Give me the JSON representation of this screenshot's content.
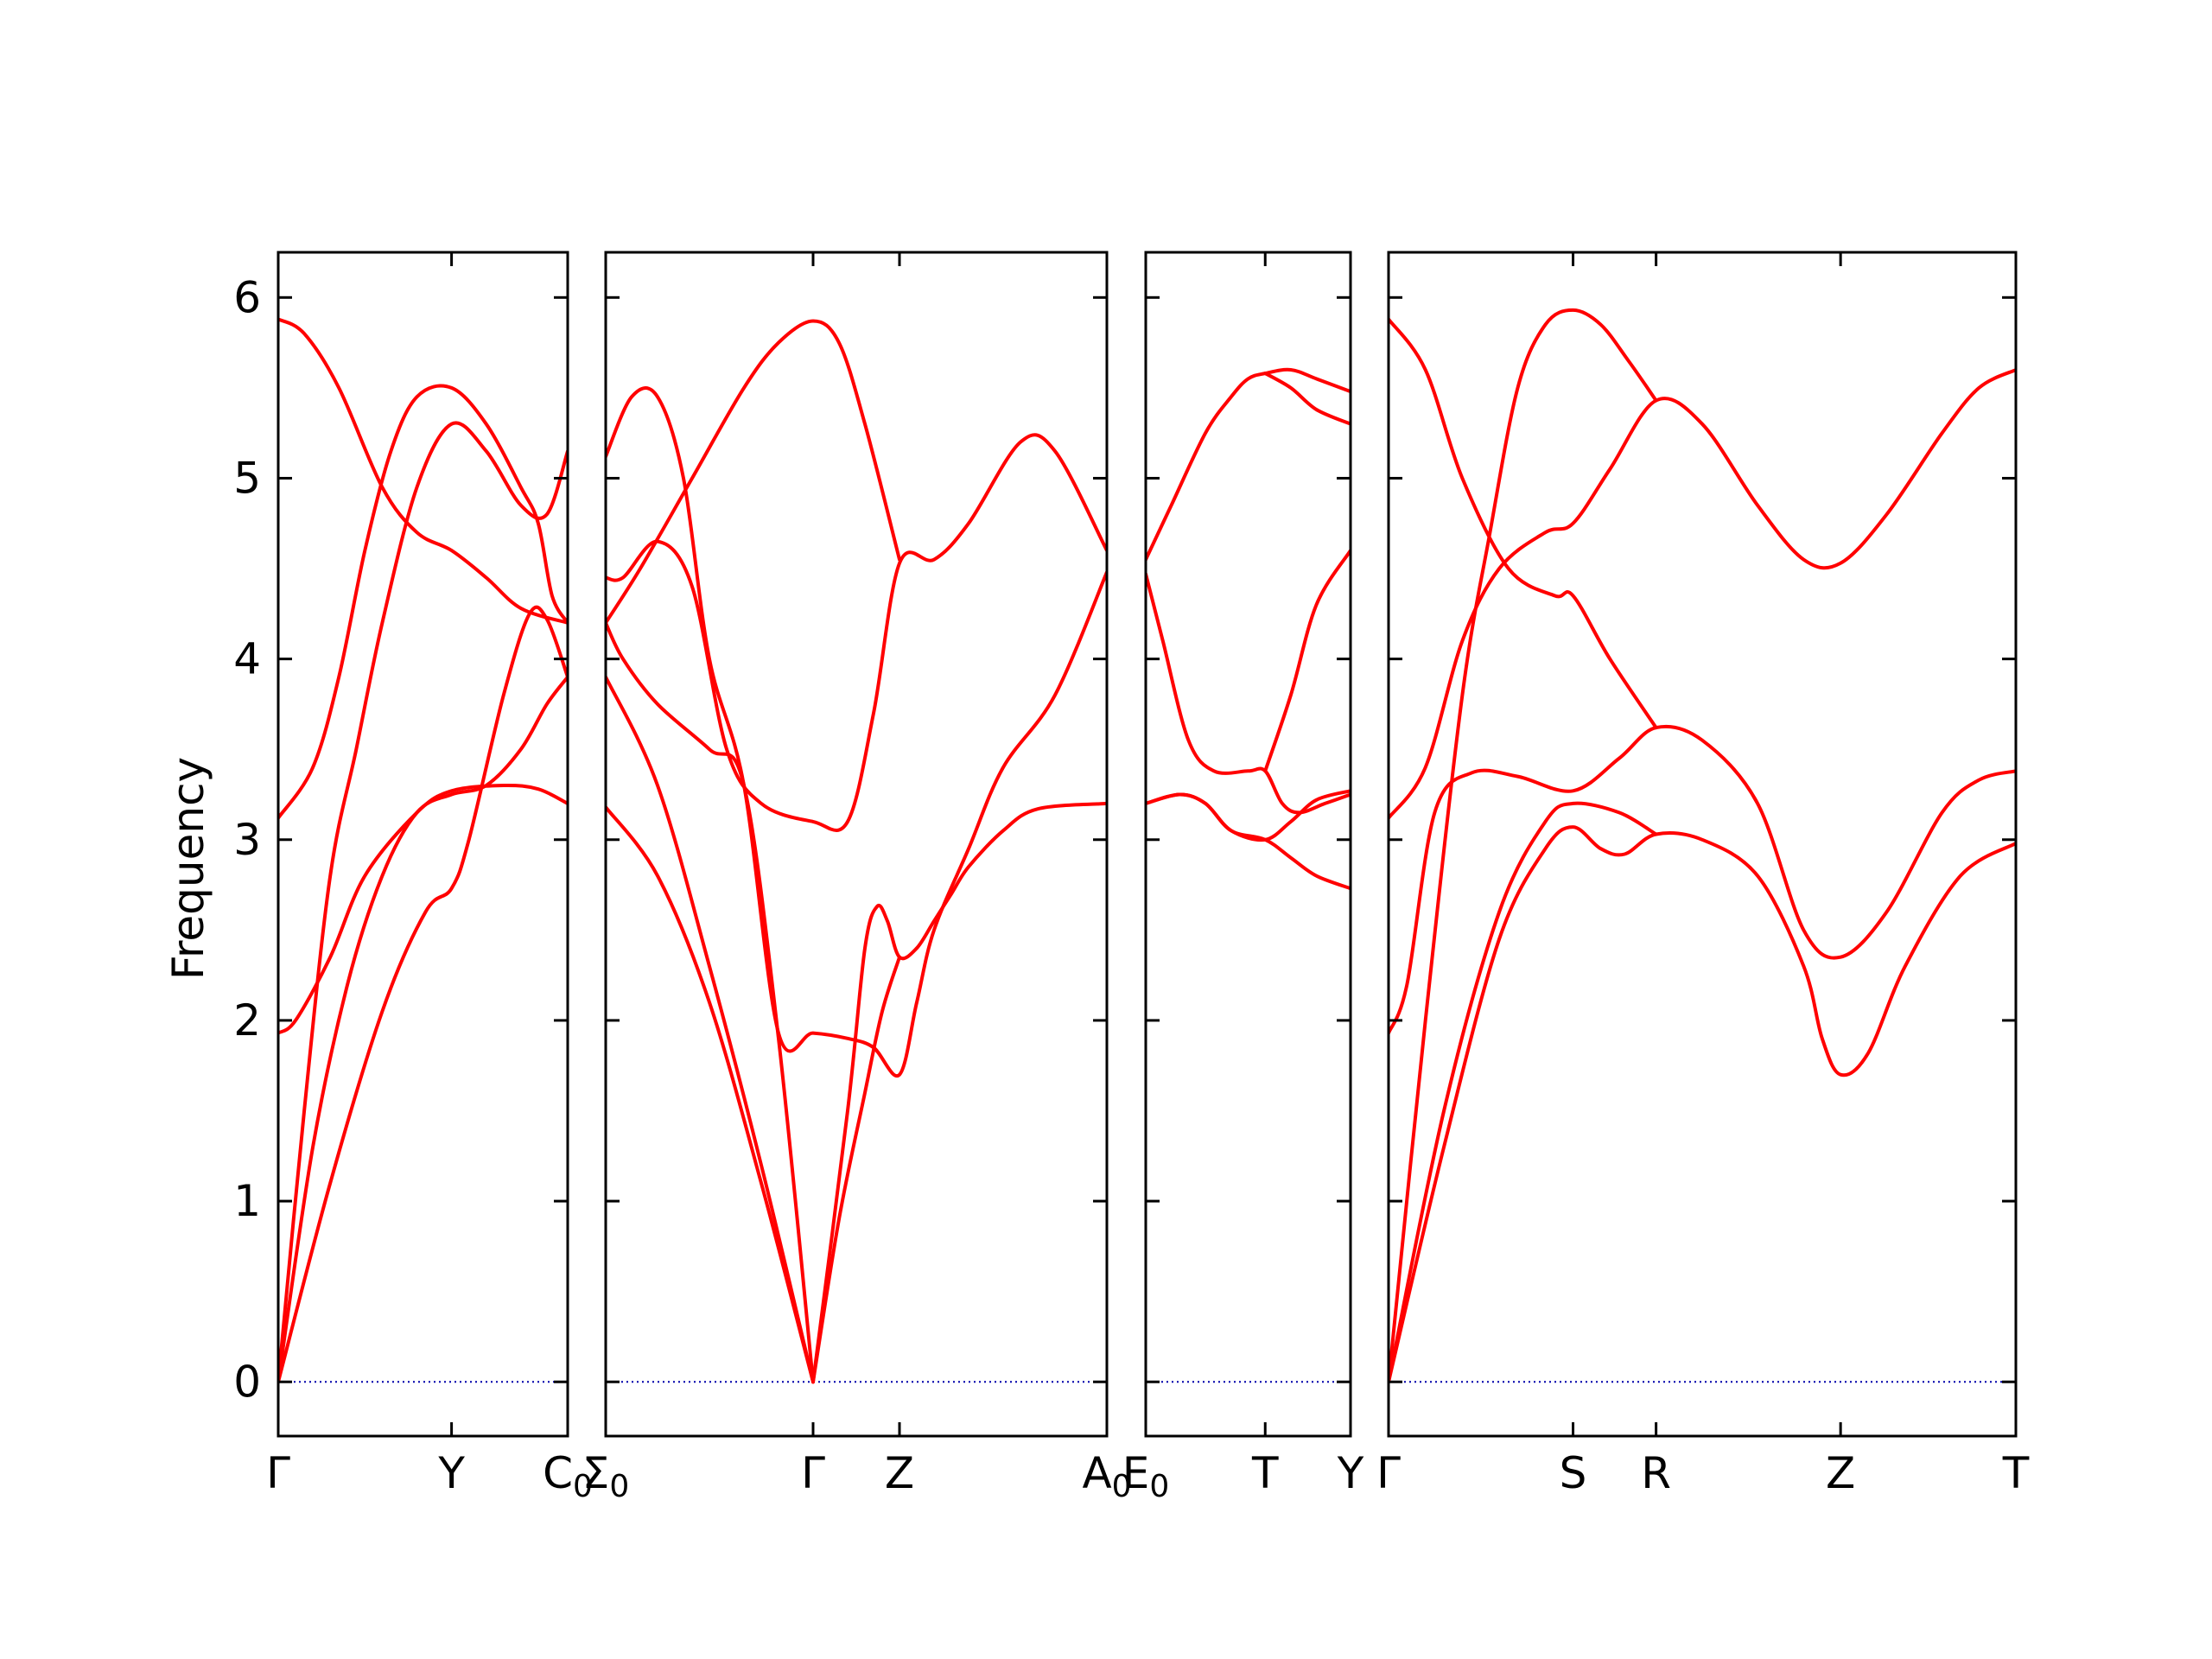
{
  "chart_data": {
    "type": "line",
    "ylabel": "Frequency",
    "ylim": [
      -0.3,
      6.25
    ],
    "yticks": [
      "0",
      "1",
      "2",
      "3",
      "4",
      "5",
      "6"
    ],
    "ytick_values": [
      0,
      1,
      2,
      3,
      4,
      5,
      6
    ],
    "band_color": "#ff0000",
    "zero_line_color": "#0000aa",
    "panels": [
      {
        "xticks": [
          {
            "label": "Γ",
            "sub": "",
            "x": 0.0
          },
          {
            "label": "Y",
            "sub": "",
            "x": 1.0
          },
          {
            "label": "C",
            "sub": "0",
            "x": 1.67
          }
        ],
        "xlim": [
          0,
          1.67
        ],
        "bands": [
          [
            [
              0,
              0
            ],
            [
              0.3,
              1.1
            ],
            [
              0.6,
              2.05
            ],
            [
              0.85,
              2.6
            ],
            [
              1.0,
              2.73
            ],
            [
              1.1,
              3.0
            ],
            [
              1.3,
              3.8
            ],
            [
              1.45,
              4.25
            ],
            [
              1.55,
              4.22
            ],
            [
              1.67,
              3.9
            ]
          ],
          [
            [
              0,
              0
            ],
            [
              0.2,
              1.3
            ],
            [
              0.4,
              2.2
            ],
            [
              0.6,
              2.8
            ],
            [
              0.8,
              3.15
            ],
            [
              1.0,
              3.25
            ],
            [
              1.2,
              3.3
            ],
            [
              1.4,
              3.5
            ],
            [
              1.55,
              3.75
            ],
            [
              1.67,
              3.9
            ]
          ],
          [
            [
              0,
              1.93
            ],
            [
              0.1,
              2.0
            ],
            [
              0.3,
              2.35
            ],
            [
              0.5,
              2.8
            ],
            [
              0.8,
              3.15
            ],
            [
              1.0,
              3.27
            ],
            [
              1.3,
              3.3
            ],
            [
              1.5,
              3.28
            ],
            [
              1.67,
              3.2
            ]
          ],
          [
            [
              0,
              0
            ],
            [
              0.15,
              1.5
            ],
            [
              0.3,
              2.8
            ],
            [
              0.45,
              3.5
            ],
            [
              0.6,
              4.2
            ],
            [
              0.8,
              4.95
            ],
            [
              1.0,
              5.3
            ],
            [
              1.2,
              5.15
            ],
            [
              1.4,
              4.85
            ],
            [
              1.55,
              4.8
            ],
            [
              1.67,
              5.15
            ]
          ],
          [
            [
              0,
              3.12
            ],
            [
              0.2,
              3.4
            ],
            [
              0.35,
              3.9
            ],
            [
              0.5,
              4.6
            ],
            [
              0.65,
              5.15
            ],
            [
              0.8,
              5.45
            ],
            [
              1.0,
              5.5
            ],
            [
              1.2,
              5.3
            ],
            [
              1.4,
              4.95
            ],
            [
              1.5,
              4.75
            ],
            [
              1.58,
              4.35
            ],
            [
              1.67,
              4.2
            ]
          ],
          [
            [
              0,
              5.88
            ],
            [
              0.15,
              5.8
            ],
            [
              0.35,
              5.5
            ],
            [
              0.6,
              4.95
            ],
            [
              0.8,
              4.7
            ],
            [
              1.0,
              4.6
            ],
            [
              1.2,
              4.45
            ],
            [
              1.4,
              4.28
            ],
            [
              1.67,
              4.2
            ]
          ]
        ]
      },
      {
        "xticks": [
          {
            "label": "Σ",
            "sub": "0",
            "x": 0.0
          },
          {
            "label": "Γ",
            "sub": "",
            "x": 1.2
          },
          {
            "label": "Z",
            "sub": "",
            "x": 1.7
          },
          {
            "label": "A",
            "sub": "0",
            "x": 2.9
          }
        ],
        "xlim": [
          0,
          2.9
        ],
        "bands": [
          [
            [
              0,
              3.18
            ],
            [
              0.3,
              2.8
            ],
            [
              0.6,
              2.1
            ],
            [
              0.9,
              1.1
            ],
            [
              1.2,
              0
            ]
          ],
          [
            [
              0,
              3.9
            ],
            [
              0.3,
              3.3
            ],
            [
              0.6,
              2.3
            ],
            [
              0.9,
              1.2
            ],
            [
              1.2,
              0
            ]
          ],
          [
            [
              0,
              4.2
            ],
            [
              0.1,
              4.0
            ],
            [
              0.3,
              3.75
            ],
            [
              0.6,
              3.5
            ],
            [
              0.8,
              3.3
            ],
            [
              1.0,
              1.9
            ],
            [
              1.2,
              0
            ]
          ],
          [
            [
              0,
              4.45
            ],
            [
              0.1,
              4.45
            ],
            [
              0.3,
              4.65
            ],
            [
              0.5,
              4.4
            ],
            [
              0.7,
              3.5
            ],
            [
              0.9,
              3.2
            ],
            [
              1.2,
              3.1
            ],
            [
              1.4,
              3.1
            ],
            [
              1.55,
              3.7
            ],
            [
              1.7,
              4.53
            ],
            [
              1.9,
              4.55
            ],
            [
              2.1,
              4.75
            ],
            [
              2.4,
              5.2
            ],
            [
              2.6,
              5.15
            ],
            [
              2.9,
              4.6
            ]
          ],
          [
            [
              0,
              5.12
            ],
            [
              0.15,
              5.45
            ],
            [
              0.3,
              5.45
            ],
            [
              0.45,
              5.0
            ],
            [
              0.6,
              4.0
            ],
            [
              0.8,
              3.3
            ],
            [
              1.0,
              1.93
            ],
            [
              1.2,
              1.93
            ],
            [
              1.4,
              1.9
            ],
            [
              1.55,
              1.85
            ],
            [
              1.7,
              1.7
            ],
            [
              1.8,
              2.1
            ],
            [
              1.9,
              2.5
            ],
            [
              2.1,
              2.95
            ],
            [
              2.3,
              3.4
            ],
            [
              2.6,
              3.8
            ],
            [
              2.9,
              4.48
            ]
          ],
          [
            [
              0,
              4.2
            ],
            [
              0.2,
              4.5
            ],
            [
              0.5,
              5.0
            ],
            [
              0.8,
              5.5
            ],
            [
              1.0,
              5.75
            ],
            [
              1.2,
              5.87
            ],
            [
              1.35,
              5.75
            ],
            [
              1.5,
              5.3
            ],
            [
              1.7,
              4.55
            ]
          ],
          [
            [
              1.2,
              0
            ],
            [
              1.4,
              1.5
            ],
            [
              1.5,
              2.4
            ],
            [
              1.57,
              2.63
            ],
            [
              1.63,
              2.55
            ],
            [
              1.7,
              2.35
            ],
            [
              1.8,
              2.4
            ],
            [
              1.9,
              2.55
            ],
            [
              2.0,
              2.7
            ],
            [
              2.1,
              2.85
            ],
            [
              2.3,
              3.05
            ],
            [
              2.5,
              3.17
            ],
            [
              2.9,
              3.2
            ]
          ],
          [
            [
              1.2,
              0
            ],
            [
              1.35,
              0.9
            ],
            [
              1.5,
              1.6
            ],
            [
              1.6,
              2.05
            ],
            [
              1.7,
              2.35
            ]
          ]
        ]
      },
      {
        "xticks": [
          {
            "label": "E",
            "sub": "0",
            "x": 0.0
          },
          {
            "label": "T",
            "sub": "",
            "x": 0.7
          },
          {
            "label": "Y",
            "sub": "",
            "x": 1.2
          }
        ],
        "xlim": [
          0,
          1.2
        ],
        "bands": [
          [
            [
              0,
              3.2
            ],
            [
              0.2,
              3.25
            ],
            [
              0.35,
              3.2
            ],
            [
              0.5,
              3.05
            ],
            [
              0.7,
              3.0
            ],
            [
              0.85,
              2.9
            ],
            [
              1.0,
              2.8
            ],
            [
              1.2,
              2.73
            ]
          ],
          [
            [
              0,
              3.2
            ],
            [
              0.2,
              3.25
            ],
            [
              0.35,
              3.2
            ],
            [
              0.5,
              3.05
            ],
            [
              0.7,
              3.0
            ],
            [
              0.85,
              3.1
            ],
            [
              1.0,
              3.22
            ],
            [
              1.2,
              3.27
            ]
          ],
          [
            [
              0,
              4.47
            ],
            [
              0.1,
              4.1
            ],
            [
              0.25,
              3.55
            ],
            [
              0.4,
              3.38
            ],
            [
              0.6,
              3.38
            ],
            [
              0.7,
              3.38
            ],
            [
              0.8,
              3.2
            ],
            [
              0.9,
              3.15
            ],
            [
              1.05,
              3.2
            ],
            [
              1.2,
              3.25
            ]
          ],
          [
            [
              0,
              4.55
            ],
            [
              0.15,
              4.85
            ],
            [
              0.35,
              5.25
            ],
            [
              0.5,
              5.45
            ],
            [
              0.6,
              5.55
            ],
            [
              0.7,
              5.58
            ],
            [
              0.85,
              5.6
            ],
            [
              1.0,
              5.55
            ],
            [
              1.2,
              5.48
            ]
          ],
          [
            [
              0.7,
              5.58
            ],
            [
              0.85,
              5.5
            ],
            [
              1.0,
              5.38
            ],
            [
              1.2,
              5.3
            ]
          ],
          [
            [
              0.7,
              3.38
            ],
            [
              0.85,
              3.8
            ],
            [
              1.0,
              4.3
            ],
            [
              1.2,
              4.6
            ]
          ]
        ]
      },
      {
        "xticks": [
          {
            "label": "Γ",
            "sub": "",
            "x": 0.0
          },
          {
            "label": "S",
            "sub": "",
            "x": 1.0
          },
          {
            "label": "R",
            "sub": "",
            "x": 1.45
          },
          {
            "label": "Z",
            "sub": "",
            "x": 2.45
          },
          {
            "label": "T",
            "sub": "",
            "x": 3.4
          }
        ],
        "xlim": [
          0,
          3.4
        ],
        "bands": [
          [
            [
              0,
              0
            ],
            [
              0.3,
              1.3
            ],
            [
              0.6,
              2.45
            ],
            [
              0.85,
              2.95
            ],
            [
              1.0,
              3.07
            ],
            [
              1.15,
              2.95
            ],
            [
              1.28,
              2.92
            ],
            [
              1.45,
              3.03
            ],
            [
              1.7,
              3.0
            ],
            [
              2.0,
              2.8
            ],
            [
              2.25,
              2.3
            ],
            [
              2.35,
              1.9
            ],
            [
              2.45,
              1.7
            ],
            [
              2.6,
              1.82
            ],
            [
              2.8,
              2.3
            ],
            [
              3.1,
              2.8
            ],
            [
              3.4,
              2.98
            ]
          ],
          [
            [
              0,
              0
            ],
            [
              0.3,
              1.5
            ],
            [
              0.6,
              2.6
            ],
            [
              0.85,
              3.1
            ],
            [
              1.0,
              3.2
            ],
            [
              1.25,
              3.15
            ],
            [
              1.45,
              3.03
            ]
          ],
          [
            [
              0,
              1.93
            ],
            [
              0.1,
              2.2
            ],
            [
              0.25,
              3.15
            ],
            [
              0.45,
              3.37
            ],
            [
              0.7,
              3.35
            ],
            [
              1.0,
              3.27
            ],
            [
              1.25,
              3.45
            ],
            [
              1.45,
              3.62
            ],
            [
              1.7,
              3.55
            ],
            [
              2.0,
              3.2
            ],
            [
              2.25,
              2.5
            ],
            [
              2.45,
              2.35
            ],
            [
              2.7,
              2.6
            ],
            [
              3.0,
              3.15
            ],
            [
              3.2,
              3.33
            ],
            [
              3.4,
              3.38
            ]
          ],
          [
            [
              0,
              3.12
            ],
            [
              0.2,
              3.4
            ],
            [
              0.4,
              4.1
            ],
            [
              0.6,
              4.5
            ],
            [
              0.85,
              4.7
            ],
            [
              1.0,
              4.75
            ],
            [
              1.2,
              5.05
            ],
            [
              1.45,
              5.43
            ],
            [
              1.7,
              5.3
            ],
            [
              2.0,
              4.85
            ],
            [
              2.25,
              4.55
            ],
            [
              2.45,
              4.53
            ],
            [
              2.7,
              4.8
            ],
            [
              3.0,
              5.25
            ],
            [
              3.2,
              5.5
            ],
            [
              3.4,
              5.6
            ]
          ],
          [
            [
              0,
              5.88
            ],
            [
              0.2,
              5.6
            ],
            [
              0.4,
              5.0
            ],
            [
              0.65,
              4.5
            ],
            [
              0.9,
              4.35
            ],
            [
              1.0,
              4.35
            ],
            [
              1.2,
              4.0
            ],
            [
              1.45,
              3.62
            ]
          ],
          [
            [
              0,
              0
            ],
            [
              0.2,
              2.0
            ],
            [
              0.4,
              3.8
            ],
            [
              0.55,
              4.7
            ],
            [
              0.7,
              5.5
            ],
            [
              0.85,
              5.85
            ],
            [
              1.0,
              5.93
            ],
            [
              1.15,
              5.85
            ],
            [
              1.3,
              5.65
            ],
            [
              1.45,
              5.43
            ]
          ]
        ]
      }
    ]
  }
}
